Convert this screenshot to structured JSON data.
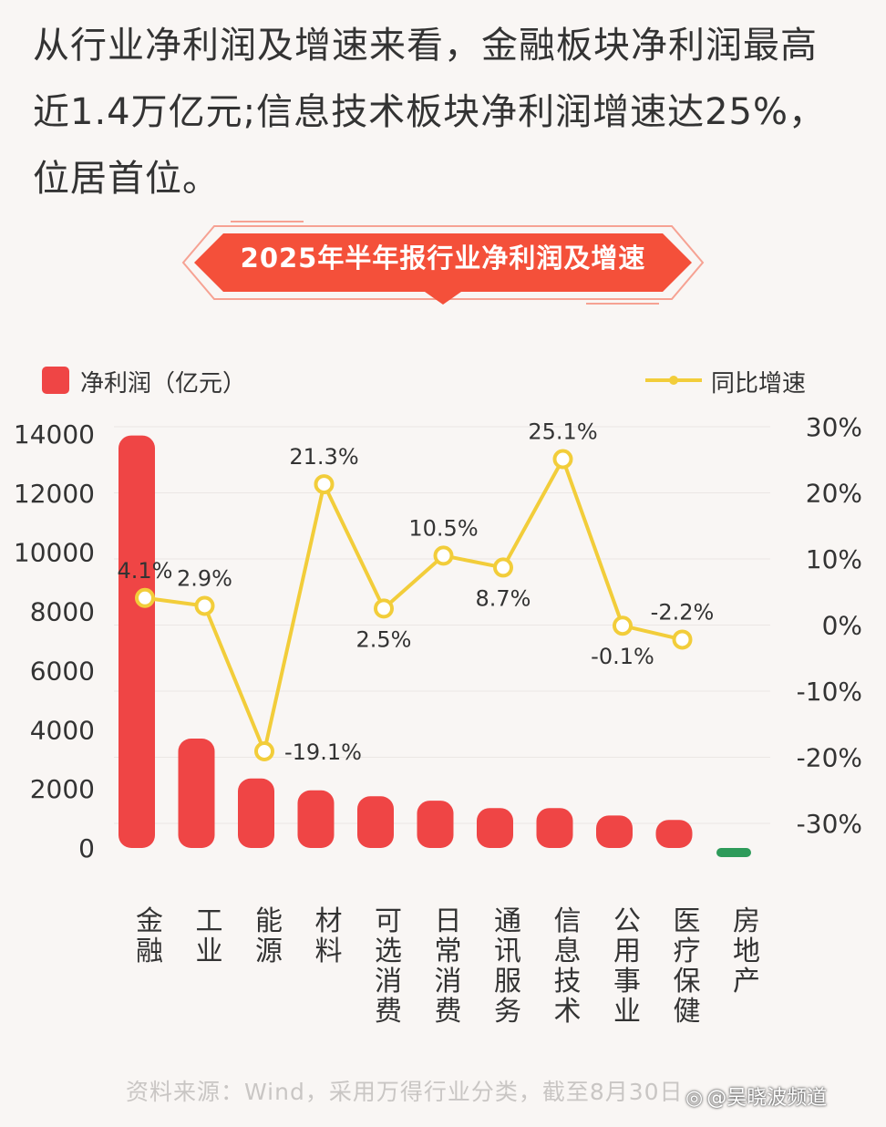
{
  "headline": "从行业净利润及增速来看，金融板块净利润最高近1.4万亿元;信息技术板块净利润增速达25%，位居首位。",
  "banner_title": "2025年半年报行业净利润及增速",
  "legend": {
    "bar_label": "净利润（亿元）",
    "line_label": "同比增速"
  },
  "source": "资料来源：Wind，采用万得行业分类，截至8月30日",
  "watermark": "@吴晓波频道",
  "colors": {
    "bar": "#ef4545",
    "bar_negative": "#2e9b5a",
    "line": "#f2cd3a",
    "banner": "#f4503a"
  },
  "chart_data": {
    "type": "bar+line",
    "title": "2025年半年报行业净利润及增速",
    "categories": [
      "金融",
      "工业",
      "能源",
      "材料",
      "可选消费",
      "日常消费",
      "通讯服务",
      "信息技术",
      "公用事业",
      "医疗保健",
      "房地产"
    ],
    "series": [
      {
        "name": "净利润（亿元）",
        "type": "bar",
        "axis": "left",
        "values": [
          13950,
          3700,
          2350,
          1950,
          1750,
          1600,
          1350,
          1350,
          1100,
          950,
          -200
        ]
      },
      {
        "name": "同比增速",
        "type": "line",
        "axis": "right",
        "values": [
          4.1,
          2.9,
          -19.1,
          21.3,
          2.5,
          10.5,
          8.7,
          25.1,
          -0.1,
          -2.2,
          null
        ],
        "labels": [
          "4.1%",
          "2.9%",
          "-19.1%",
          "21.3%",
          "2.5%",
          "10.5%",
          "8.7%",
          "25.1%",
          "-0.1%",
          "-2.2%",
          ""
        ]
      }
    ],
    "left_axis": {
      "ylim": [
        0,
        14000
      ],
      "ticks": [
        0,
        2000,
        4000,
        6000,
        8000,
        10000,
        12000,
        14000
      ],
      "tick_labels": [
        "0",
        "2000",
        "4000",
        "6000",
        "8000",
        "10000",
        "12000",
        "14000"
      ]
    },
    "right_axis": {
      "ylim": [
        -30,
        30
      ],
      "ticks": [
        30,
        20,
        10,
        0,
        -10,
        -20,
        -30
      ],
      "tick_labels": [
        "30%",
        "20%",
        "10%",
        "0%",
        "-10%",
        "-20%",
        "-30%"
      ]
    },
    "grid": true
  }
}
